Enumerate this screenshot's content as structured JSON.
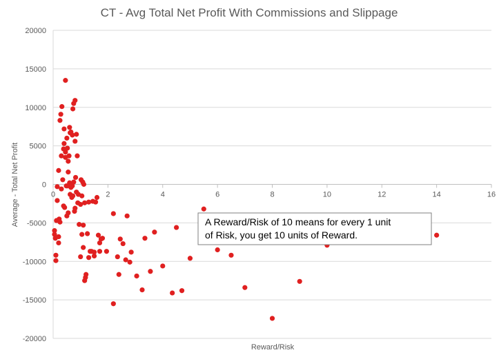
{
  "chart_data": {
    "type": "scatter",
    "title": "CT - Avg Total Net Profit With Commissions and Slippage",
    "xlabel": "Reward/Risk",
    "ylabel": "Average - Total Net Profit",
    "xlim": [
      0,
      16
    ],
    "ylim": [
      -20000,
      20000
    ],
    "x_ticks": [
      0,
      2,
      4,
      6,
      8,
      10,
      12,
      14,
      16
    ],
    "y_ticks": [
      20000,
      15000,
      10000,
      5000,
      0,
      -5000,
      -10000,
      -15000,
      -20000
    ],
    "grid": "horizontal",
    "legend": "none",
    "marker_color": "#e02020",
    "series": [
      {
        "points": [
          [
            0.05,
            -6000
          ],
          [
            0.05,
            -6500
          ],
          [
            0.08,
            -7000
          ],
          [
            0.1,
            -9200
          ],
          [
            0.1,
            -9900
          ],
          [
            0.12,
            -4700
          ],
          [
            0.15,
            -300
          ],
          [
            0.15,
            -2100
          ],
          [
            0.2,
            -6800
          ],
          [
            0.2,
            -7600
          ],
          [
            0.2,
            1800
          ],
          [
            0.22,
            -4500
          ],
          [
            0.25,
            8300
          ],
          [
            0.25,
            -4900
          ],
          [
            0.28,
            9100
          ],
          [
            0.3,
            -600
          ],
          [
            0.3,
            3700
          ],
          [
            0.32,
            10100
          ],
          [
            0.35,
            600
          ],
          [
            0.38,
            -2800
          ],
          [
            0.38,
            4600
          ],
          [
            0.4,
            7200
          ],
          [
            0.4,
            5300
          ],
          [
            0.42,
            -3000
          ],
          [
            0.45,
            13500
          ],
          [
            0.45,
            4200
          ],
          [
            0.45,
            3500
          ],
          [
            0.48,
            -200
          ],
          [
            0.5,
            6000
          ],
          [
            0.5,
            -4100
          ],
          [
            0.52,
            -200
          ],
          [
            0.52,
            4700
          ],
          [
            0.55,
            3000
          ],
          [
            0.55,
            1600
          ],
          [
            0.55,
            -3700
          ],
          [
            0.58,
            3700
          ],
          [
            0.6,
            7400
          ],
          [
            0.6,
            200
          ],
          [
            0.62,
            6700
          ],
          [
            0.62,
            -1300
          ],
          [
            0.65,
            6800
          ],
          [
            0.65,
            -400
          ],
          [
            0.68,
            -1700
          ],
          [
            0.7,
            6400
          ],
          [
            0.7,
            -200
          ],
          [
            0.72,
            9800
          ],
          [
            0.72,
            -1500
          ],
          [
            0.75,
            10500
          ],
          [
            0.75,
            300
          ],
          [
            0.78,
            -3500
          ],
          [
            0.8,
            10900
          ],
          [
            0.8,
            5600
          ],
          [
            0.8,
            -3100
          ],
          [
            0.82,
            900
          ],
          [
            0.85,
            6500
          ],
          [
            0.85,
            -1000
          ],
          [
            0.88,
            3700
          ],
          [
            0.9,
            -2400
          ],
          [
            0.92,
            -1300
          ],
          [
            0.95,
            -5200
          ],
          [
            1.0,
            -2600
          ],
          [
            1.0,
            -9400
          ],
          [
            1.02,
            600
          ],
          [
            1.05,
            -1500
          ],
          [
            1.05,
            -6500
          ],
          [
            1.08,
            300
          ],
          [
            1.1,
            -5300
          ],
          [
            1.1,
            -8200
          ],
          [
            1.12,
            0
          ],
          [
            1.15,
            -2400
          ],
          [
            1.15,
            -12500
          ],
          [
            1.18,
            -12100
          ],
          [
            1.2,
            -11700
          ],
          [
            1.25,
            -6400
          ],
          [
            1.3,
            -2300
          ],
          [
            1.3,
            -9500
          ],
          [
            1.35,
            -8700
          ],
          [
            1.4,
            -8700
          ],
          [
            1.45,
            -2200
          ],
          [
            1.5,
            -8800
          ],
          [
            1.5,
            -9300
          ],
          [
            1.55,
            -2300
          ],
          [
            1.6,
            -1700
          ],
          [
            1.65,
            -6600
          ],
          [
            1.7,
            -7600
          ],
          [
            1.7,
            -8700
          ],
          [
            1.75,
            -7100
          ],
          [
            1.8,
            -7000
          ],
          [
            1.95,
            -8700
          ],
          [
            2.2,
            -3800
          ],
          [
            2.2,
            -15500
          ],
          [
            2.35,
            -9400
          ],
          [
            2.4,
            -11700
          ],
          [
            2.45,
            -7100
          ],
          [
            2.55,
            -7700
          ],
          [
            2.65,
            -9800
          ],
          [
            2.7,
            -4100
          ],
          [
            2.8,
            -10100
          ],
          [
            2.85,
            -8800
          ],
          [
            3.05,
            -11900
          ],
          [
            3.25,
            -13700
          ],
          [
            3.35,
            -7000
          ],
          [
            3.55,
            -11300
          ],
          [
            3.7,
            -6200
          ],
          [
            4.0,
            -10600
          ],
          [
            4.35,
            -14100
          ],
          [
            4.5,
            -5600
          ],
          [
            4.7,
            -13800
          ],
          [
            5.0,
            -9600
          ],
          [
            5.5,
            -3200
          ],
          [
            6.0,
            -8500
          ],
          [
            6.5,
            -9200
          ],
          [
            7.0,
            -13400
          ],
          [
            8.0,
            -17400
          ],
          [
            9.0,
            -12600
          ],
          [
            10.0,
            -7900
          ],
          [
            13.0,
            -6200
          ],
          [
            14.0,
            -6600
          ]
        ]
      }
    ],
    "annotation": {
      "line1": "A Reward/Risk of 10 means for every 1 unit",
      "line2": "of Risk, you get 10 units of Reward."
    }
  }
}
